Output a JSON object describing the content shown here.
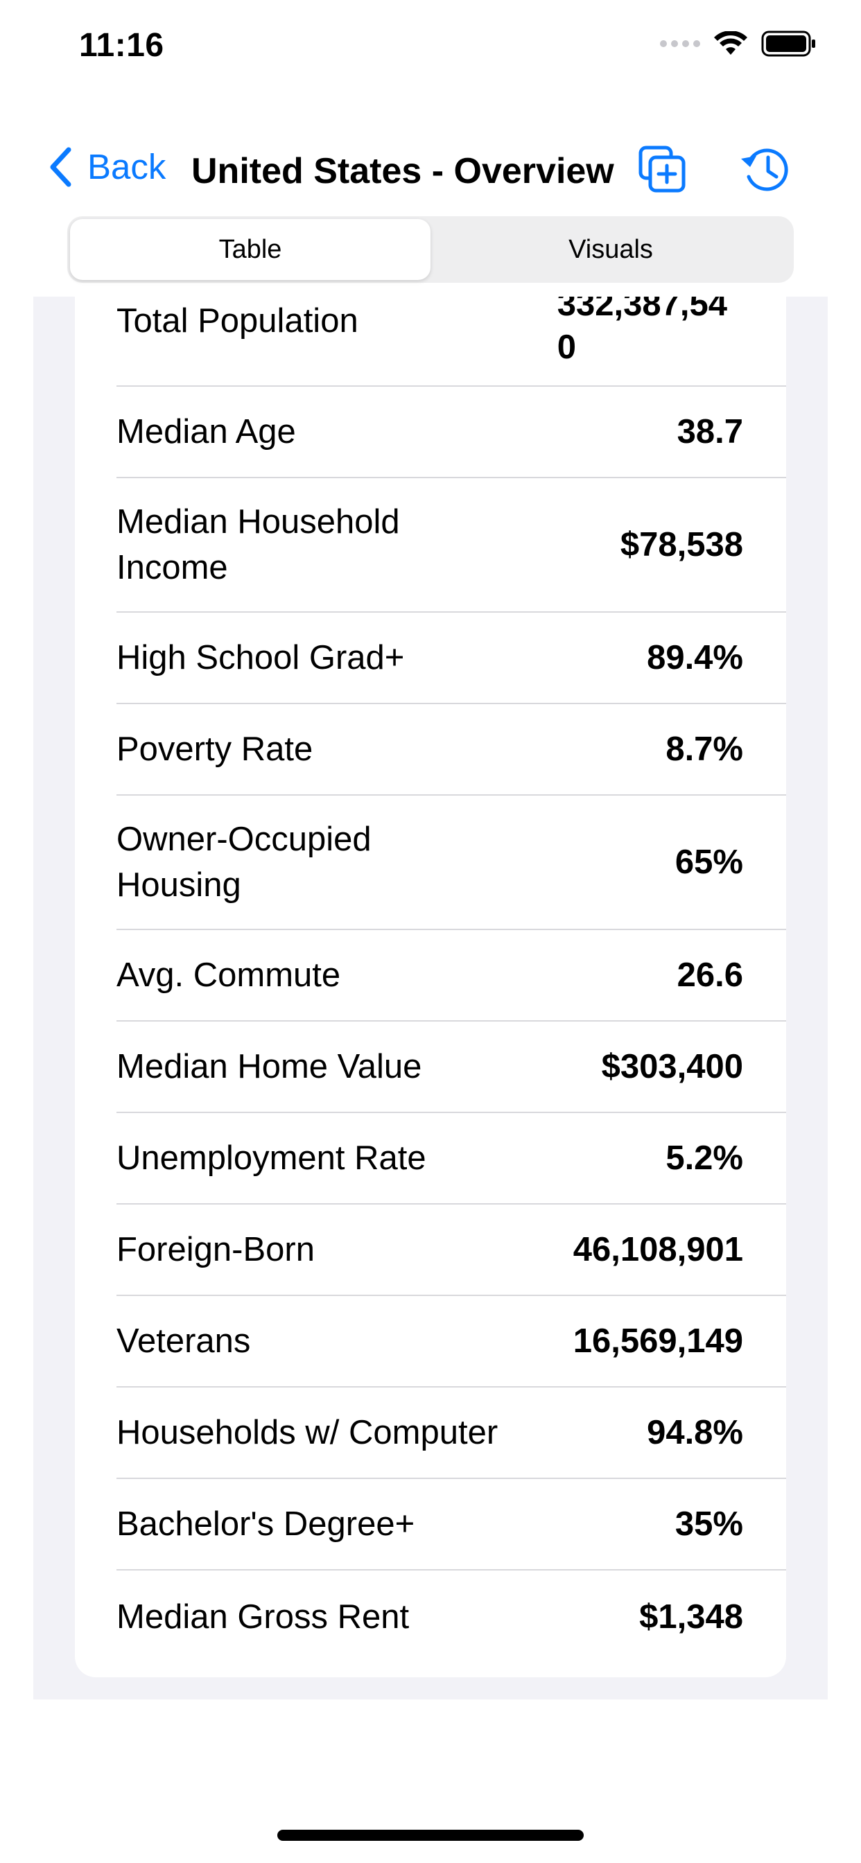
{
  "status_bar": {
    "time": "11:16"
  },
  "nav": {
    "back_label": "Back",
    "title": "United States - Overview",
    "icons": [
      "back-chevron-icon",
      "duplicate-icon",
      "history-icon"
    ]
  },
  "segments": [
    {
      "label": "Table",
      "selected": true
    },
    {
      "label": "Visuals",
      "selected": false
    }
  ],
  "colors": {
    "accent": "#0a7aff",
    "background": "#f2f2f7",
    "card": "#ffffff"
  },
  "rows": [
    {
      "label": "Total Population",
      "value": "332,387,540"
    },
    {
      "label": "Median Age",
      "value": "38.7"
    },
    {
      "label": "Median Household Income",
      "value": "$78,538"
    },
    {
      "label": "High School Grad+",
      "value": "89.4%"
    },
    {
      "label": "Poverty Rate",
      "value": "8.7%"
    },
    {
      "label": "Owner-Occupied Housing",
      "value": "65%"
    },
    {
      "label": "Avg. Commute",
      "value": "26.6"
    },
    {
      "label": "Median Home Value",
      "value": "$303,400"
    },
    {
      "label": "Unemployment Rate",
      "value": "5.2%"
    },
    {
      "label": "Foreign-Born",
      "value": "46,108,901"
    },
    {
      "label": "Veterans",
      "value": "16,569,149"
    },
    {
      "label": "Households w/ Computer",
      "value": "94.8%"
    },
    {
      "label": "Bachelor's Degree+",
      "value": "35%"
    },
    {
      "label": "Median Gross Rent",
      "value": "$1,348"
    }
  ]
}
